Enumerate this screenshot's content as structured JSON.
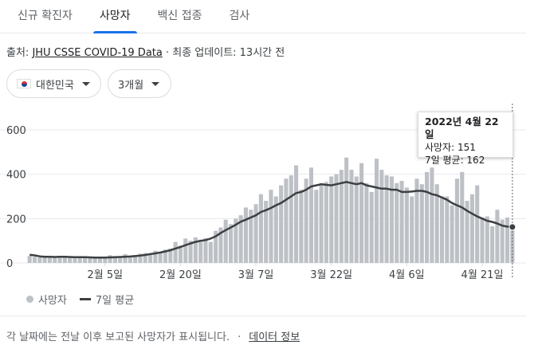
{
  "tabs": [
    {
      "label": "신규 확진자"
    },
    {
      "label": "사망자"
    },
    {
      "label": "백신 접종"
    },
    {
      "label": "검사"
    }
  ],
  "source": {
    "prefix": "출처: ",
    "link": "JHU CSSE COVID-19 Data",
    "suffix": " · 최종 업데이트: 13시간 전"
  },
  "filters": {
    "region": "대한민국",
    "range": "3개월"
  },
  "tooltip": {
    "date": "2022년 4월 22일",
    "deaths": "사망자: 151",
    "average": "7일 평균: 162"
  },
  "legend": {
    "bars": "사망자",
    "line": "7일 평균"
  },
  "footer": {
    "note": "각 날짜에는 전날 이후 보고된 사망자가 표시됩니다.",
    "separator": "·",
    "link": "데이터 정보"
  },
  "colors": {
    "bar": "#bdc1c6",
    "line": "#3c4043",
    "accent": "#1a73e8"
  },
  "chart_data": {
    "type": "bar",
    "y_ticks": [
      "600",
      "400",
      "200",
      "0"
    ],
    "ylim": [
      0,
      600
    ],
    "x_ticks": [
      {
        "label": "2월 5일",
        "index": 15
      },
      {
        "label": "2월 20일",
        "index": 30
      },
      {
        "label": "3월 7일",
        "index": 45
      },
      {
        "label": "3월 22일",
        "index": 60
      },
      {
        "label": "4월 6일",
        "index": 75
      },
      {
        "label": "4월 21일",
        "index": 90
      }
    ],
    "values": [
      32,
      28,
      25,
      30,
      28,
      26,
      30,
      29,
      27,
      26,
      28,
      25,
      26,
      24,
      23,
      25,
      35,
      28,
      30,
      40,
      32,
      35,
      42,
      45,
      38,
      55,
      48,
      60,
      65,
      95,
      78,
      110,
      100,
      115,
      105,
      112,
      95,
      145,
      160,
      195,
      175,
      200,
      215,
      250,
      240,
      265,
      310,
      280,
      330,
      300,
      350,
      380,
      395,
      440,
      330,
      380,
      430,
      330,
      360,
      365,
      390,
      400,
      420,
      475,
      420,
      390,
      450,
      360,
      320,
      470,
      420,
      395,
      390,
      360,
      370,
      340,
      300,
      380,
      355,
      410,
      430,
      355,
      300,
      300,
      260,
      380,
      410,
      280,
      310,
      350,
      205,
      210,
      165,
      240,
      195,
      205,
      151
    ],
    "series": [
      {
        "name": "7일 평균",
        "values": [
          37,
          34,
          30,
          28,
          28,
          27,
          28,
          28,
          27,
          26,
          26,
          26,
          25,
          24,
          24,
          24,
          25,
          26,
          27,
          28,
          29,
          31,
          33,
          36,
          40,
          43,
          47,
          52,
          57,
          65,
          72,
          80,
          88,
          95,
          100,
          103,
          110,
          120,
          135,
          148,
          160,
          172,
          186,
          195,
          205,
          215,
          230,
          238,
          248,
          260,
          270,
          285,
          300,
          315,
          320,
          330,
          345,
          350,
          355,
          352,
          350,
          355,
          360,
          365,
          360,
          355,
          360,
          350,
          345,
          340,
          335,
          335,
          330,
          330,
          320,
          320,
          322,
          325,
          325,
          320,
          310,
          305,
          295,
          285,
          270,
          260,
          250,
          235,
          222,
          210,
          200,
          190,
          185,
          178,
          168,
          164,
          162
        ]
      }
    ]
  }
}
